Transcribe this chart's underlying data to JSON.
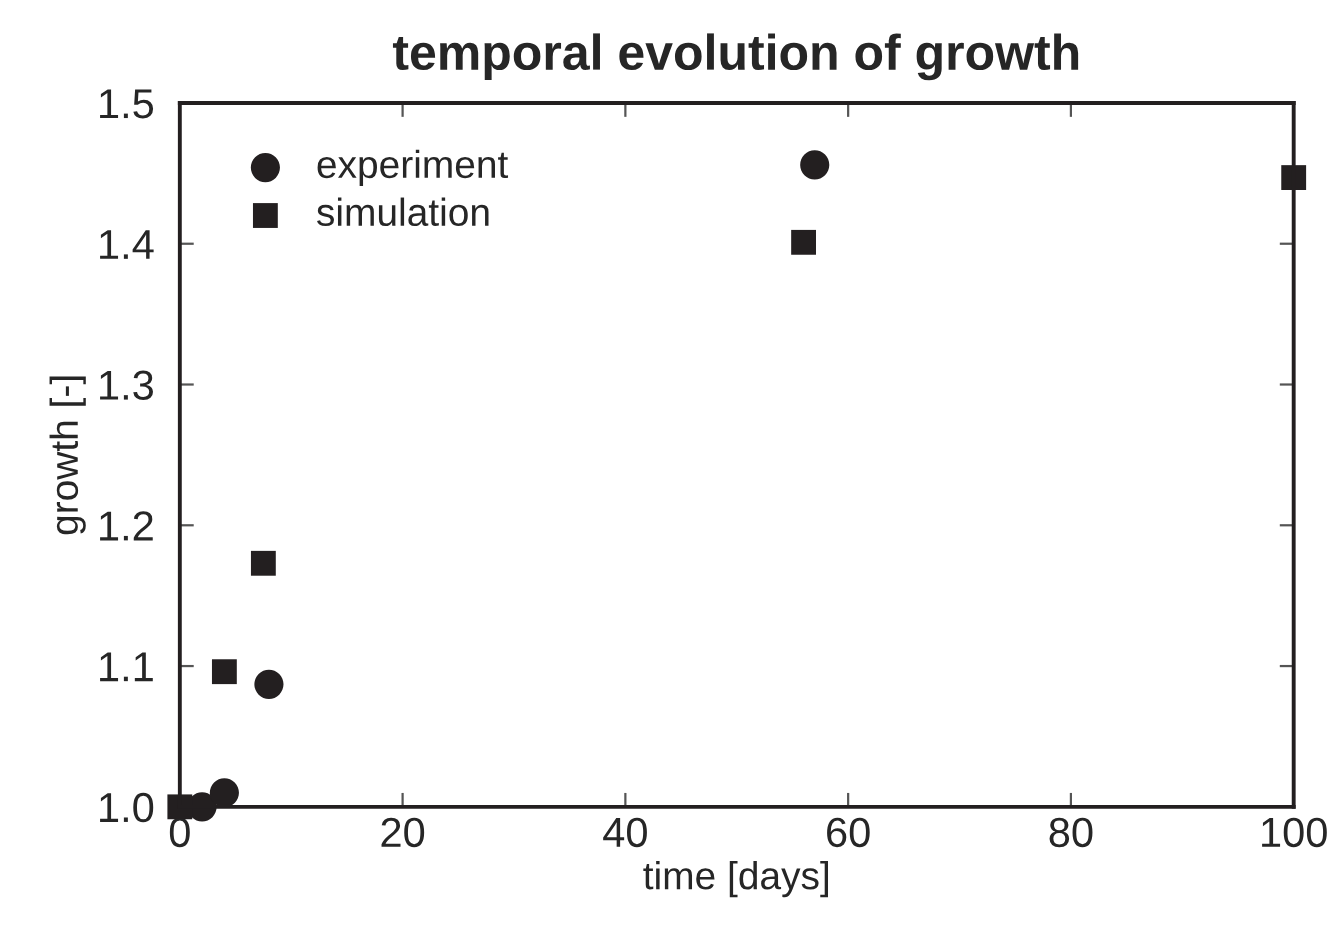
{
  "chart_data": {
    "type": "scatter",
    "title": "temporal evolution of growth",
    "xlabel": "time [days]",
    "ylabel": "growth [-]",
    "xlim": [
      0,
      100
    ],
    "xticks": [
      0,
      20,
      40,
      60,
      80,
      100
    ],
    "ylim": [
      1.0,
      1.5
    ],
    "yticks": [
      {
        "value": 1.0,
        "label": "1.0"
      },
      1.1,
      1.2,
      1.3,
      1.4,
      1.5
    ],
    "legend": "top left",
    "grid": false,
    "series": [
      {
        "name": "experiment",
        "color": "#231f20",
        "marker": "circle",
        "x": [
          2,
          4,
          8,
          57
        ],
        "values": [
          1.0,
          1.01,
          1.087,
          1.456
        ]
      },
      {
        "name": "simulation",
        "color": "#231f20",
        "marker": "square",
        "x": [
          0,
          4,
          7.5,
          56,
          100
        ],
        "values": [
          1.0,
          1.096,
          1.173,
          1.401,
          1.447
        ]
      }
    ]
  }
}
